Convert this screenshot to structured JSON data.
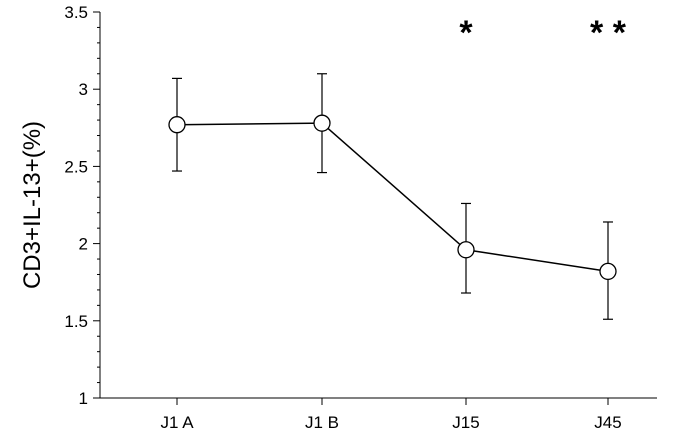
{
  "chart_data": {
    "type": "line",
    "title": "",
    "xlabel": "",
    "ylabel": "CD3+IL-13+(%)",
    "categories": [
      "J1 A",
      "J1 B",
      "J15",
      "J45"
    ],
    "series": [
      {
        "values": [
          2.77,
          2.78,
          1.96,
          1.82
        ],
        "error_low": [
          2.47,
          2.46,
          1.68,
          1.51
        ],
        "error_high": [
          3.07,
          3.1,
          2.26,
          2.14
        ]
      }
    ],
    "ylim": [
      1,
      3.5
    ],
    "yticks": [
      {
        "value": 1,
        "label": "1"
      },
      {
        "value": 1.5,
        "label": "1.5"
      },
      {
        "value": 2,
        "label": "2"
      },
      {
        "value": 2.5,
        "label": "2.5"
      },
      {
        "value": 3,
        "label": "3"
      },
      {
        "value": 3.5,
        "label": "3.5"
      }
    ],
    "annotations": [
      {
        "category": "J15",
        "text": "*"
      },
      {
        "category": "J45",
        "text": "* *"
      }
    ],
    "grid": false,
    "marker": "open-circle",
    "line_color": "#000000"
  }
}
